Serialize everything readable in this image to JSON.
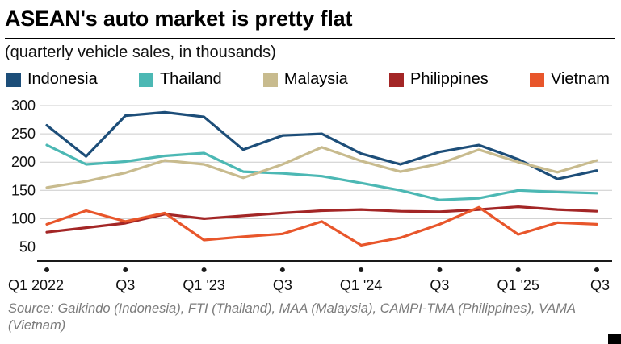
{
  "header": {
    "title": "ASEAN's auto market is pretty flat",
    "subtitle": "(quarterly vehicle sales, in thousands)"
  },
  "chart_data": {
    "type": "line",
    "x": [
      "Q1 2022",
      "Q2 2022",
      "Q3 2022",
      "Q4 2022",
      "Q1 '23",
      "Q2 '23",
      "Q3 '23",
      "Q4 '23",
      "Q1 '24",
      "Q2 '24",
      "Q3 '24",
      "Q4 '24",
      "Q1 '25",
      "Q2 '25",
      "Q3 '25"
    ],
    "x_tick_labels": [
      "Q1 2022",
      "Q3",
      "Q1 '23",
      "Q3",
      "Q1 '24",
      "Q3",
      "Q1 '25",
      "Q3"
    ],
    "x_tick_indices": [
      0,
      2,
      4,
      6,
      8,
      10,
      12,
      14
    ],
    "y_ticks": [
      50,
      100,
      150,
      200,
      250,
      300
    ],
    "ylim": [
      25,
      310
    ],
    "grid": true,
    "legend_position": "top",
    "series": [
      {
        "name": "Indonesia",
        "color": "#1d4e79",
        "values": [
          265,
          210,
          282,
          288,
          280,
          222,
          247,
          250,
          215,
          196,
          218,
          230,
          205,
          170,
          185
        ]
      },
      {
        "name": "Thailand",
        "color": "#4cb8b4",
        "values": [
          230,
          196,
          201,
          211,
          216,
          183,
          180,
          175,
          163,
          150,
          133,
          136,
          150,
          147,
          145
        ]
      },
      {
        "name": "Malaysia",
        "color": "#c8bb8e",
        "values": [
          155,
          166,
          181,
          203,
          196,
          172,
          196,
          226,
          202,
          183,
          197,
          222,
          200,
          182,
          203
        ]
      },
      {
        "name": "Philippines",
        "color": "#a32626",
        "values": [
          76,
          84,
          92,
          108,
          100,
          105,
          110,
          114,
          116,
          113,
          112,
          116,
          121,
          116,
          113
        ]
      },
      {
        "name": "Vietnam",
        "color": "#e8562b",
        "values": [
          90,
          114,
          95,
          110,
          62,
          68,
          73,
          95,
          53,
          66,
          90,
          120,
          72,
          93,
          90
        ]
      }
    ]
  },
  "footer": {
    "source": "Source: Gaikindo (Indonesia), FTI (Thailand), MAA (Malaysia), CAMPI-TMA (Philippines), VAMA (Vietnam)"
  }
}
